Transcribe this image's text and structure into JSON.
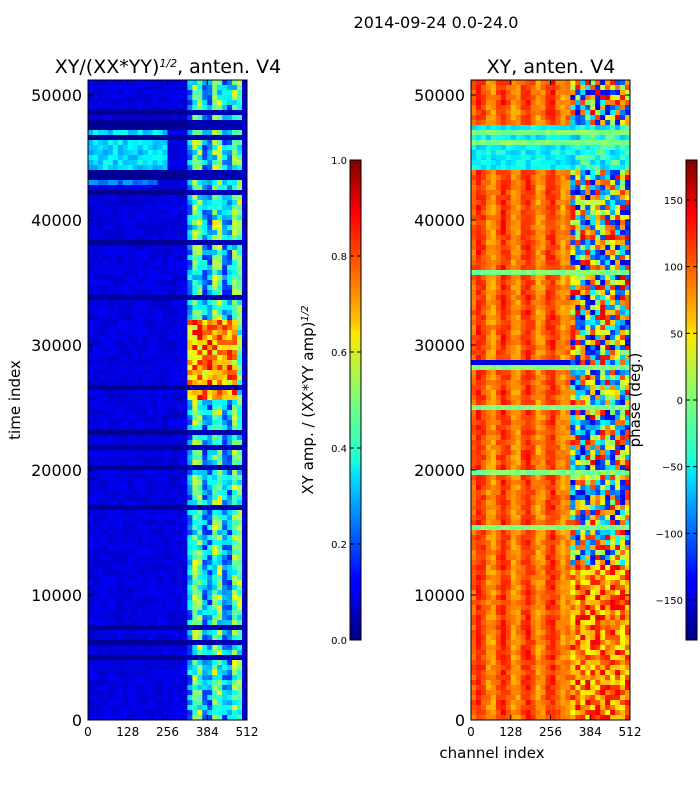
{
  "suptitle": "2014-09-24 0.0-24.0",
  "chart_data": [
    {
      "type": "heatmap",
      "title_main": "XY/(XX*YY)",
      "title_sup": "1/2",
      "title_tail": ", anten. V4",
      "ylabel": "time index",
      "xlabel": "",
      "xlim": [
        0,
        512
      ],
      "ylim": [
        0,
        51200
      ],
      "xticks": [
        "0",
        "128",
        "256",
        "384",
        "512"
      ],
      "xtick_values": [
        0,
        128,
        256,
        384,
        512
      ],
      "yticks": [
        "0",
        "10000",
        "20000",
        "30000",
        "40000",
        "50000"
      ],
      "ytick_values": [
        0,
        10000,
        20000,
        30000,
        40000,
        50000
      ],
      "colorbar": {
        "label_main": "XY amp. / (XX*YY amp)",
        "label_sup": "1/2",
        "range": [
          0.0,
          1.0
        ],
        "ticks": [
          "0.0",
          "0.2",
          "0.4",
          "0.6",
          "0.8",
          "1.0"
        ],
        "tick_values": [
          0.0,
          0.2,
          0.4,
          0.6,
          0.8,
          1.0
        ],
        "colormap": "jet"
      }
    },
    {
      "type": "heatmap",
      "title": "XY, anten. V4",
      "xlabel": "channel index",
      "ylabel": "",
      "xlim": [
        0,
        512
      ],
      "ylim": [
        0,
        51200
      ],
      "xticks": [
        "0",
        "128",
        "256",
        "384",
        "512"
      ],
      "xtick_values": [
        0,
        128,
        256,
        384,
        512
      ],
      "yticks": [
        "0",
        "10000",
        "20000",
        "30000",
        "40000",
        "50000"
      ],
      "ytick_values": [
        0,
        10000,
        20000,
        30000,
        40000,
        50000
      ],
      "colorbar": {
        "label": "phase (deg.)",
        "range": [
          -180,
          180
        ],
        "ticks": [
          "−150",
          "−100",
          "−50",
          "0",
          "50",
          "100",
          "150"
        ],
        "tick_values": [
          -150,
          -100,
          -50,
          0,
          50,
          100,
          150
        ],
        "colormap": "jet"
      }
    }
  ]
}
